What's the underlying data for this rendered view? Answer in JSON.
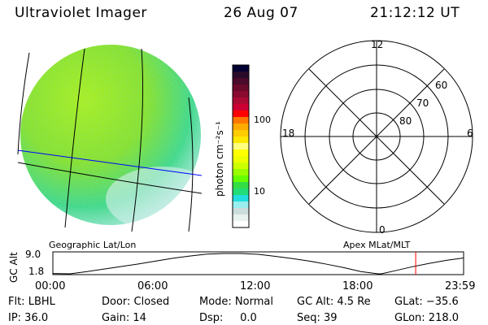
{
  "header": {
    "instrument": "Ultraviolet Imager",
    "date": "26 Aug 07",
    "time": "21:12:12 UT"
  },
  "colorbar": {
    "label": "photon cm⁻²s⁻¹",
    "ticks": [
      "100",
      "10"
    ],
    "colors": [
      "#000033",
      "#2a0a2a",
      "#4a0a2a",
      "#6a0a2a",
      "#8a0a30",
      "#aa0a33",
      "#cc0033",
      "#ff0000",
      "#ff7700",
      "#ffaa00",
      "#ffcc00",
      "#ffe800",
      "#ffff80",
      "#ffff00",
      "#eeff00",
      "#ccff00",
      "#99ff00",
      "#66ff00",
      "#33dd44",
      "#22dd77",
      "#22dddd",
      "#99eeee",
      "#ccdddd",
      "#e8f2ee",
      "#ffffff"
    ]
  },
  "polar": {
    "mlt_labels": {
      "top": "12",
      "left": "18",
      "right": "6",
      "bottom": "0"
    },
    "lat_labels": [
      "60",
      "70",
      "80"
    ]
  },
  "labels": {
    "geo": "Geographic Lat/Lon",
    "apex": "Apex MLat/MLT"
  },
  "chart_data": {
    "type": "line",
    "title": "GC Alt",
    "ylabel": "GC Alt",
    "yticks": [
      "9.0",
      "1.8"
    ],
    "ylim": [
      1.8,
      9.0
    ],
    "xticks": [
      "00:00",
      "06:00",
      "12:00",
      "18:00",
      "23:59"
    ],
    "x": [
      0,
      1,
      2,
      3,
      4,
      5,
      6,
      7,
      8,
      9,
      10,
      11,
      12,
      13,
      14,
      15,
      16,
      17,
      18,
      19,
      19.2,
      20,
      21,
      22,
      23,
      24
    ],
    "y": [
      1.9,
      1.8,
      2.6,
      3.5,
      4.4,
      5.3,
      6.3,
      7.3,
      8.1,
      8.8,
      9.0,
      9.0,
      8.7,
      8.0,
      7.2,
      6.3,
      5.2,
      4.0,
      2.6,
      1.8,
      1.8,
      2.9,
      4.3,
      5.5,
      6.6,
      7.4
    ],
    "current_time_hours": 21.2
  },
  "footer": [
    [
      "Flt: LBHL",
      "Door: Closed",
      "Mode: Normal",
      "GC Alt: 4.5 Re",
      "GLat: −35.6"
    ],
    [
      "IP: 36.0",
      "Gain: 14",
      "Dsp:     0.0",
      "Seq: 39",
      "GLon: 218.0"
    ]
  ]
}
